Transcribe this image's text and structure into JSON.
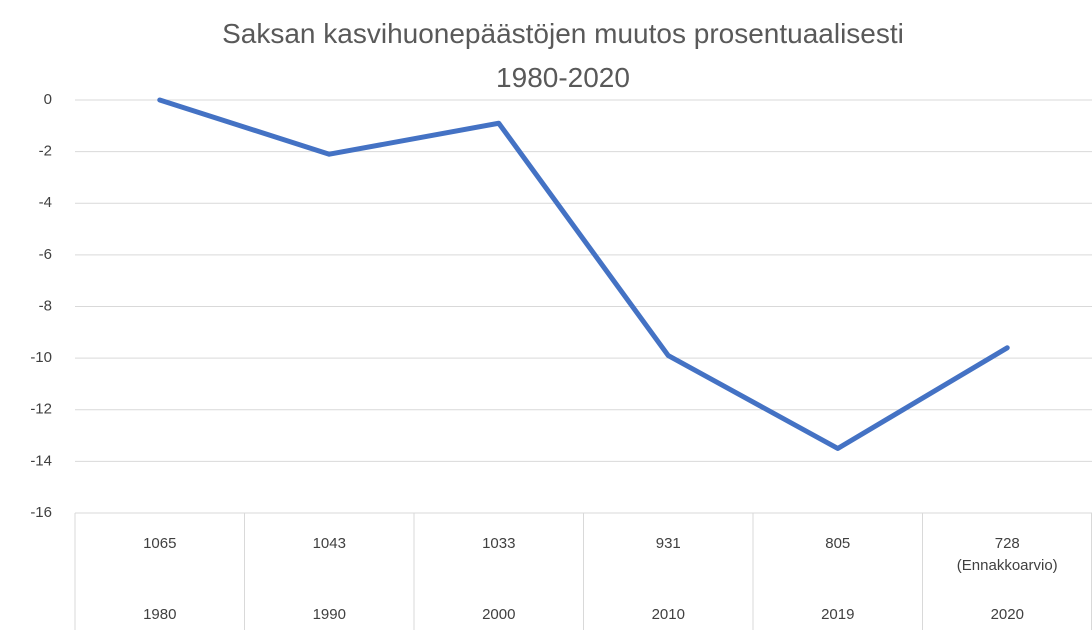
{
  "chart_data": {
    "type": "line",
    "title": "Saksan kasvihuonepäästöjen muutos prosentuaalisesti\n1980-2020",
    "categories": [
      "1980",
      "1990",
      "2000",
      "2010",
      "2019",
      "2020"
    ],
    "category_labels_top": [
      "1065",
      "1043",
      "1033",
      "931",
      "805",
      "728\n(Ennakkoarvio)"
    ],
    "values": [
      0,
      -2.1,
      -0.9,
      -9.9,
      -13.5,
      -9.6
    ],
    "color": "#4472c4",
    "ylim": [
      -16,
      0
    ],
    "yticks": [
      0,
      -2,
      -4,
      -6,
      -8,
      -10,
      -12,
      -14,
      -16
    ],
    "grid": true
  }
}
